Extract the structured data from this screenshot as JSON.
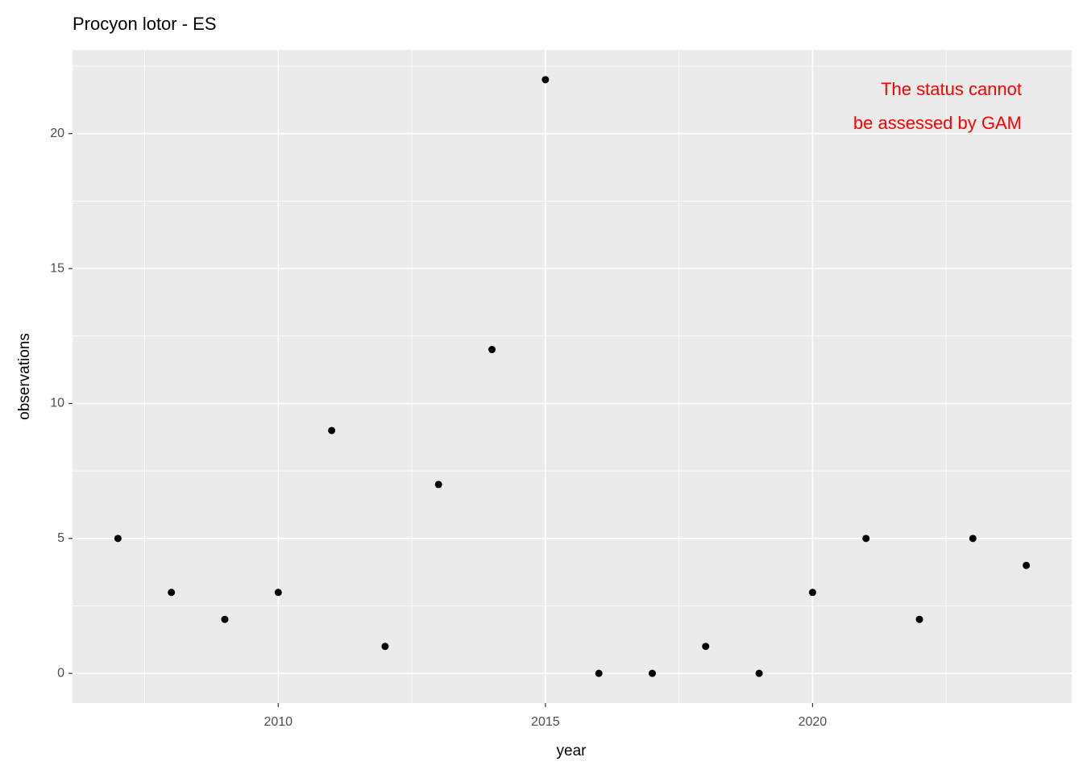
{
  "chart_data": {
    "type": "scatter",
    "title": "Procyon lotor - ES",
    "x_label": "year",
    "y_label": "observations",
    "x": [
      2007,
      2008,
      2009,
      2010,
      2011,
      2012,
      2013,
      2014,
      2015,
      2016,
      2017,
      2018,
      2019,
      2020,
      2021,
      2022,
      2023,
      2024
    ],
    "values": [
      5,
      3,
      2,
      3,
      9,
      1,
      7,
      12,
      22,
      0,
      0,
      1,
      0,
      3,
      5,
      2,
      5,
      4
    ],
    "color": "#000000",
    "xlim": [
      2006.15,
      2024.85
    ],
    "xticks": [
      2010,
      2015,
      2020
    ],
    "ylim": [
      -1.1,
      23.1
    ],
    "yticks": [
      0,
      5,
      10,
      15,
      20
    ],
    "grid": true,
    "annotation": [
      "The status cannot",
      "be assessed by GAM"
    ],
    "annotation_color": "#ff0000"
  }
}
